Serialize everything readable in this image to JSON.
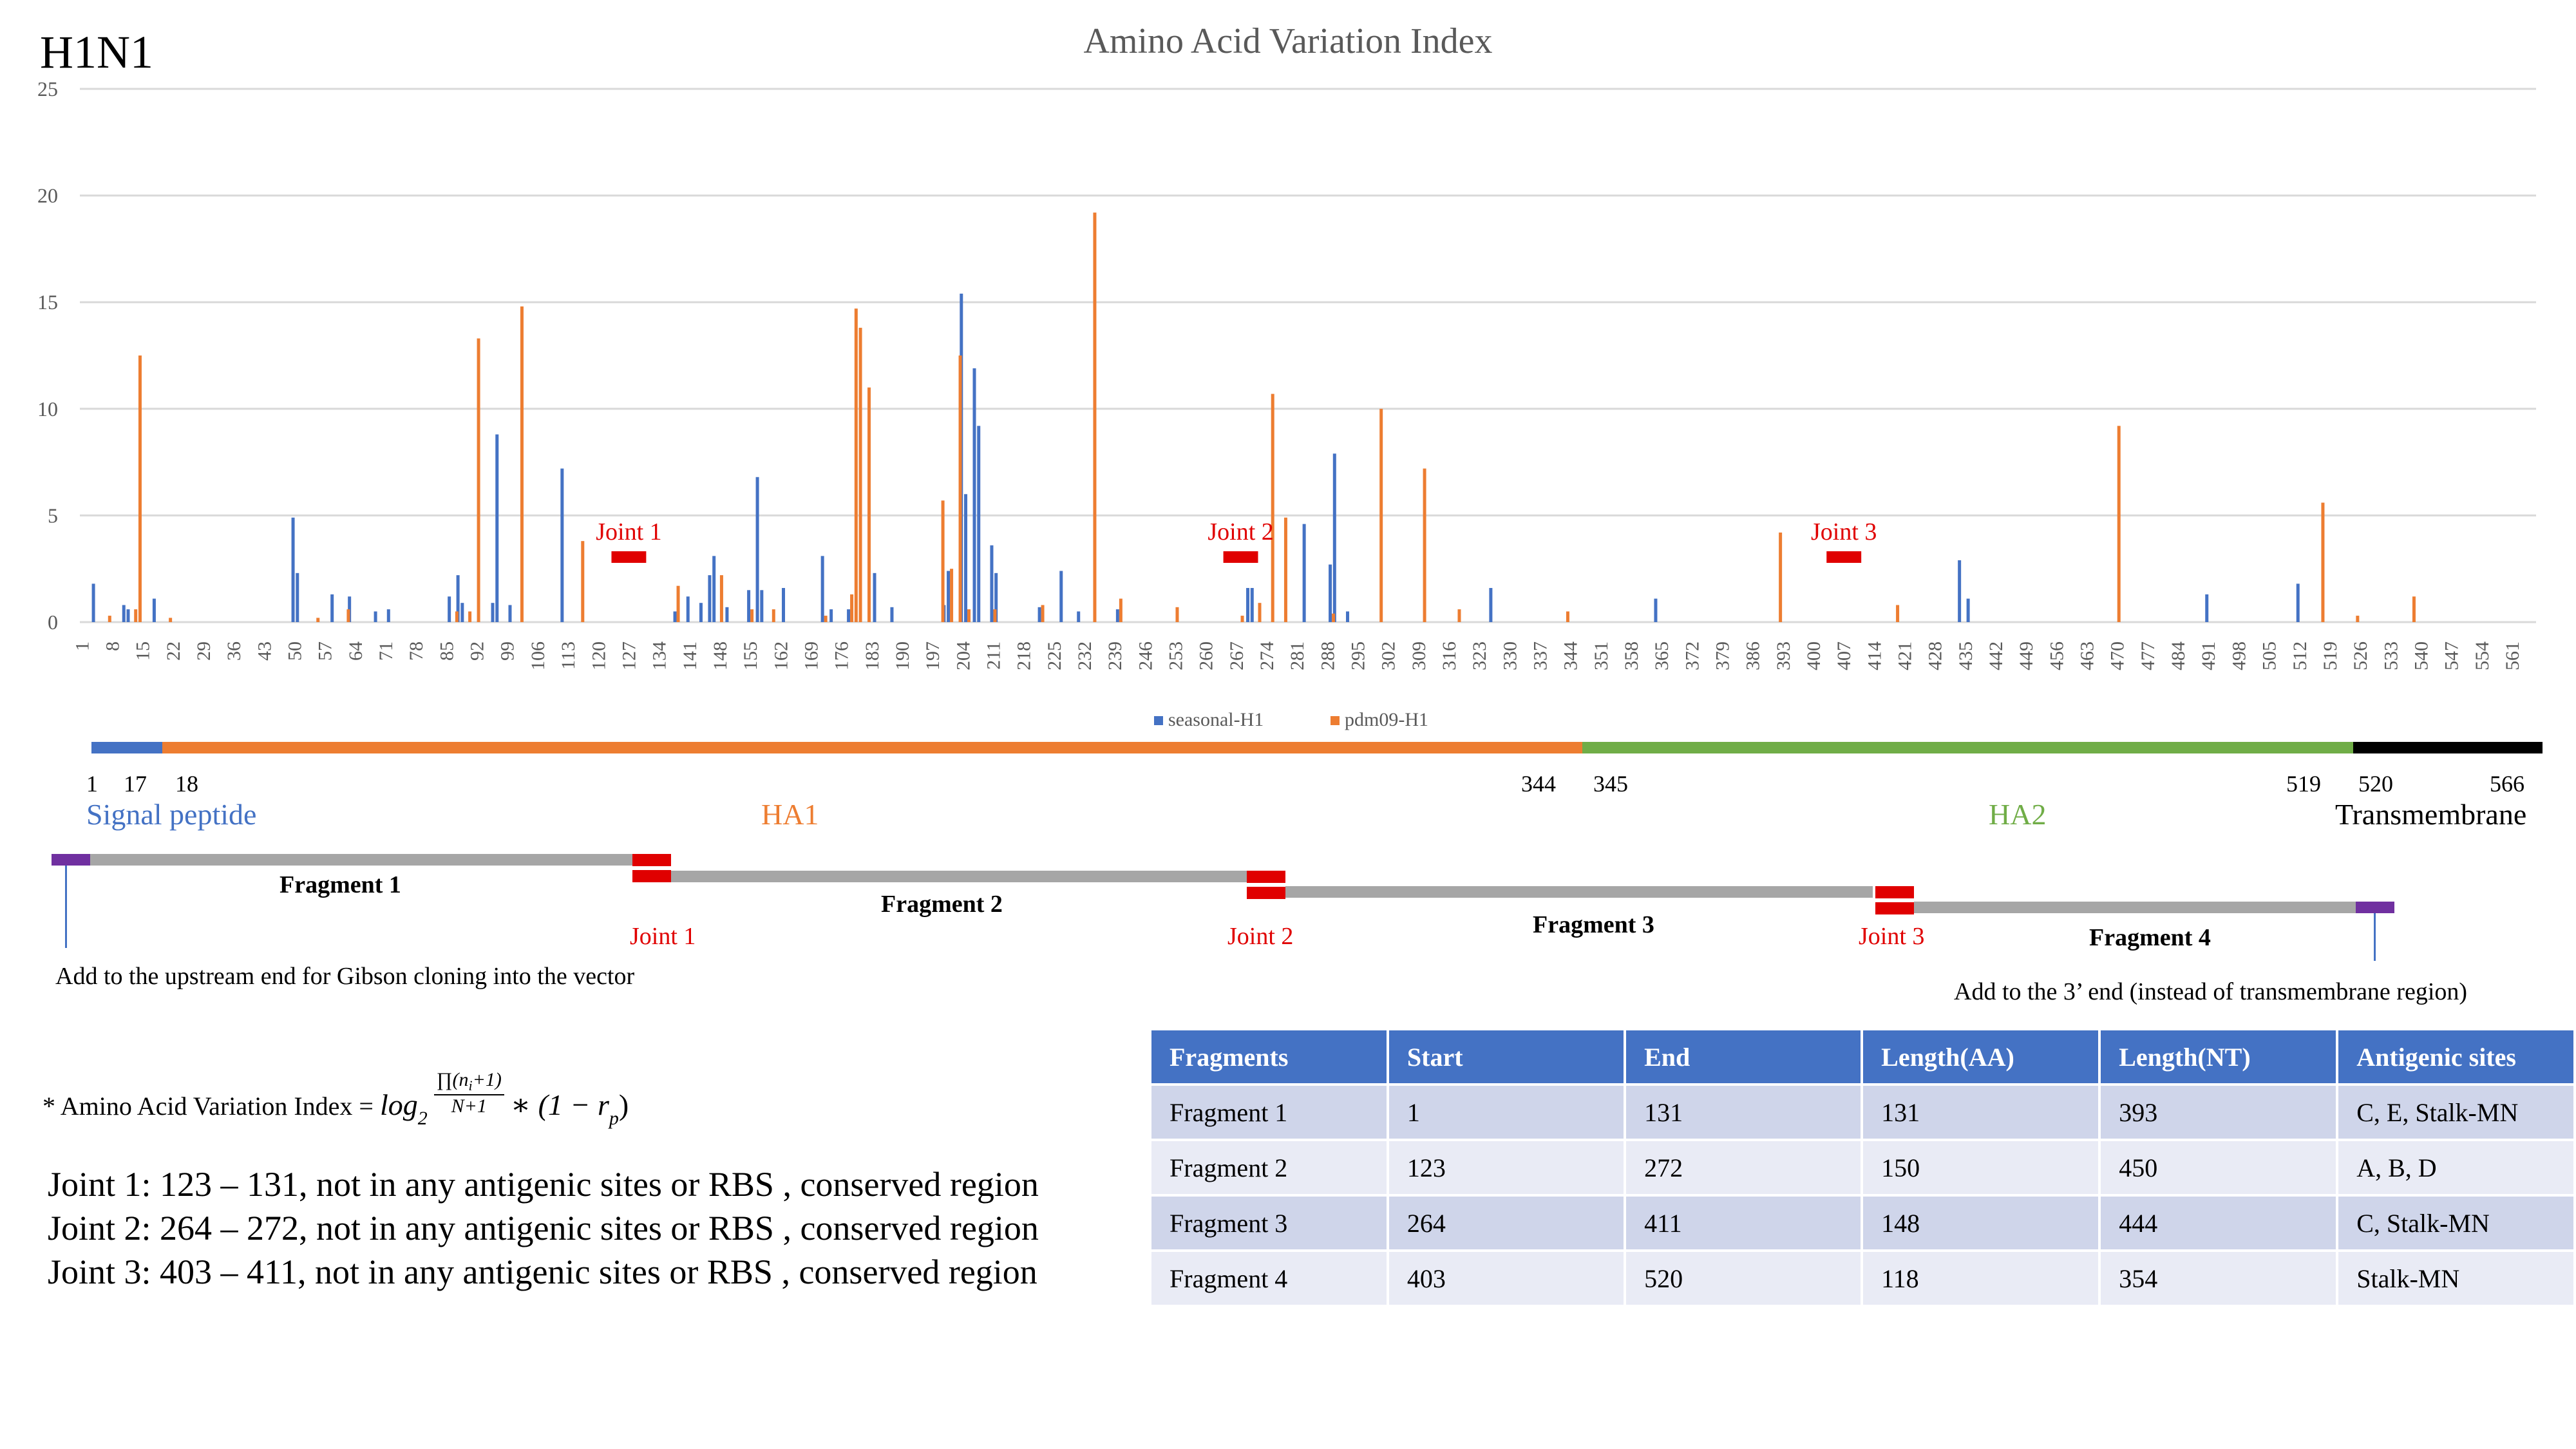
{
  "strain_label": "H1N1",
  "chart_data": {
    "type": "bar",
    "title": "Amino Acid Variation Index",
    "xlabel": "",
    "ylabel": "",
    "ylim": [
      0,
      25
    ],
    "yticks": [
      0,
      5,
      10,
      15,
      20,
      25
    ],
    "grid": true,
    "legend_position": "bottom",
    "x_range": [
      1,
      566
    ],
    "x_tick_labels": [
      "1",
      "8",
      "15",
      "22",
      "29",
      "36",
      "43",
      "50",
      "57",
      "64",
      "71",
      "78",
      "85",
      "92",
      "99",
      "106",
      "113",
      "120",
      "127",
      "134",
      "141",
      "148",
      "155",
      "162",
      "169",
      "176",
      "183",
      "190",
      "197",
      "204",
      "211",
      "218",
      "225",
      "232",
      "239",
      "246",
      "253",
      "260",
      "267",
      "274",
      "281",
      "288",
      "295",
      "302",
      "309",
      "316",
      "323",
      "330",
      "337",
      "344",
      "351",
      "358",
      "365",
      "372",
      "379",
      "386",
      "393",
      "400",
      "407",
      "414",
      "421",
      "428",
      "435",
      "442",
      "449",
      "456",
      "463",
      "470",
      "477",
      "484",
      "491",
      "498",
      "505",
      "512",
      "519",
      "526",
      "533",
      "540",
      "547",
      "554",
      "561"
    ],
    "series": [
      {
        "name": "seasonal-H1",
        "color": "#4472C4",
        "points": [
          [
            4,
            1.8
          ],
          [
            11,
            0.8
          ],
          [
            12,
            0.6
          ],
          [
            18,
            1.1
          ],
          [
            50,
            4.9
          ],
          [
            51,
            2.3
          ],
          [
            59,
            1.3
          ],
          [
            63,
            1.2
          ],
          [
            69,
            0.5
          ],
          [
            72,
            0.6
          ],
          [
            86,
            1.2
          ],
          [
            88,
            2.2
          ],
          [
            89,
            0.9
          ],
          [
            96,
            0.9
          ],
          [
            97,
            8.8
          ],
          [
            100,
            0.8
          ],
          [
            112,
            7.2
          ],
          [
            138,
            0.5
          ],
          [
            141,
            1.2
          ],
          [
            144,
            0.9
          ],
          [
            146,
            2.2
          ],
          [
            147,
            3.1
          ],
          [
            150,
            0.7
          ],
          [
            155,
            1.5
          ],
          [
            157,
            6.8
          ],
          [
            158,
            1.5
          ],
          [
            163,
            1.6
          ],
          [
            172,
            3.1
          ],
          [
            174,
            0.6
          ],
          [
            178,
            0.6
          ],
          [
            184,
            2.3
          ],
          [
            188,
            0.7
          ],
          [
            200,
            0.8
          ],
          [
            201,
            2.4
          ],
          [
            204,
            15.4
          ],
          [
            205,
            6.0
          ],
          [
            207,
            11.9
          ],
          [
            208,
            9.2
          ],
          [
            211,
            3.6
          ],
          [
            212,
            2.3
          ],
          [
            222,
            0.7
          ],
          [
            227,
            2.4
          ],
          [
            231,
            0.5
          ],
          [
            240,
            0.6
          ],
          [
            270,
            1.6
          ],
          [
            271,
            1.6
          ],
          [
            283,
            4.6
          ],
          [
            289,
            2.7
          ],
          [
            290,
            7.9
          ],
          [
            293,
            0.5
          ],
          [
            326,
            1.6
          ],
          [
            364,
            1.1
          ],
          [
            434,
            2.9
          ],
          [
            436,
            1.1
          ],
          [
            491,
            1.3
          ],
          [
            512,
            1.8
          ]
        ]
      },
      {
        "name": "pdm09-H1",
        "color": "#ED7D31",
        "points": [
          [
            7,
            0.3
          ],
          [
            13,
            0.6
          ],
          [
            14,
            12.5
          ],
          [
            21,
            0.2
          ],
          [
            55,
            0.2
          ],
          [
            62,
            0.6
          ],
          [
            87,
            0.5
          ],
          [
            90,
            0.5
          ],
          [
            92,
            13.3
          ],
          [
            102,
            14.8
          ],
          [
            116,
            3.8
          ],
          [
            138,
            1.7
          ],
          [
            148,
            2.2
          ],
          [
            155,
            0.6
          ],
          [
            160,
            0.6
          ],
          [
            172,
            0.3
          ],
          [
            178,
            1.3
          ],
          [
            179,
            14.7
          ],
          [
            180,
            13.8
          ],
          [
            182,
            11.0
          ],
          [
            199,
            5.7
          ],
          [
            201,
            2.5
          ],
          [
            203,
            12.5
          ],
          [
            205,
            0.6
          ],
          [
            211,
            0.6
          ],
          [
            222,
            0.8
          ],
          [
            234,
            19.2
          ],
          [
            240,
            1.1
          ],
          [
            253,
            0.7
          ],
          [
            268,
            0.3
          ],
          [
            272,
            0.9
          ],
          [
            275,
            10.7
          ],
          [
            278,
            4.9
          ],
          [
            289,
            0.4
          ],
          [
            300,
            10.0
          ],
          [
            310,
            7.2
          ],
          [
            318,
            0.6
          ],
          [
            343,
            0.5
          ],
          [
            392,
            4.2
          ],
          [
            419,
            0.8
          ],
          [
            470,
            9.2
          ],
          [
            517,
            5.6
          ],
          [
            525,
            0.3
          ],
          [
            538,
            1.2
          ]
        ]
      }
    ]
  },
  "joints_on_chart": [
    {
      "label": "Joint 1"
    },
    {
      "label": "Joint 2"
    },
    {
      "label": "Joint 3"
    }
  ],
  "domains": {
    "signal": {
      "name": "Signal peptide",
      "start": "1",
      "end": "17",
      "color": "#4472C4"
    },
    "ha1": {
      "name": "HA1",
      "start": "18",
      "end": "344",
      "color": "#ED7D31"
    },
    "ha2": {
      "name": "HA2",
      "start": "345",
      "end": "519",
      "color": "#70AD47"
    },
    "tm": {
      "name": "Transmembrane",
      "start": "520",
      "end": "566",
      "color": "#000000"
    }
  },
  "fragments_diagram": {
    "fragments": [
      "Fragment 1",
      "Fragment 2",
      "Fragment 3",
      "Fragment 4"
    ],
    "joints": [
      "Joint 1",
      "Joint 2",
      "Joint 3"
    ],
    "upstream_note": "Add to the upstream end for Gibson cloning into the vector",
    "downstream_note": "Add to the 3’ end (instead of transmembrane region)"
  },
  "formula": {
    "prefix": "* Amino Acid Variation Index = ",
    "log": "log",
    "log_base": "2",
    "numerator": "∏(n",
    "numerator_sub": "i",
    "numerator_end": "+1)",
    "denominator": "N+1",
    "suffix": "∗ (1 − r",
    "suffix_sub": "p",
    "suffix_end": ")"
  },
  "joint_notes": [
    "Joint 1: 123 – 131, not in any antigenic sites or RBS , conserved region",
    "Joint 2: 264 – 272, not in any antigenic sites or RBS , conserved region",
    "Joint 3: 403 – 411, not in any antigenic sites or RBS , conserved region"
  ],
  "table": {
    "headers": [
      "Fragments",
      "Start",
      "End",
      "Length(AA)",
      "Length(NT)",
      "Antigenic sites"
    ],
    "rows": [
      [
        "Fragment 1",
        "1",
        "131",
        "131",
        "393",
        "C, E, Stalk-MN"
      ],
      [
        "Fragment 2",
        "123",
        "272",
        "150",
        "450",
        "A, B, D"
      ],
      [
        "Fragment 3",
        "264",
        "411",
        "148",
        "444",
        "C, Stalk-MN"
      ],
      [
        "Fragment 4",
        "403",
        "520",
        "118",
        "354",
        "Stalk-MN"
      ]
    ]
  }
}
